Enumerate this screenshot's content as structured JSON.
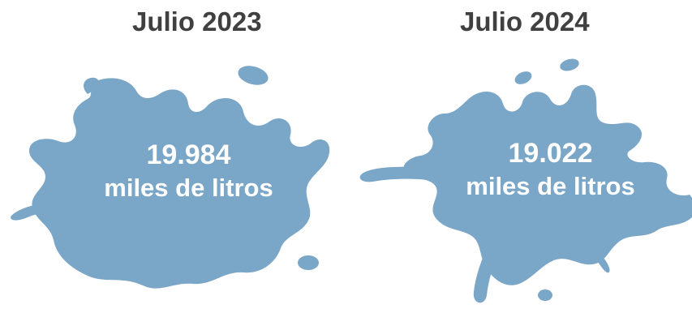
{
  "panels": [
    {
      "title": "Julio 2023",
      "value": "19.984",
      "unit": "miles de litros"
    },
    {
      "title": "Julio 2024",
      "value": "19.022",
      "unit": "miles de litros"
    }
  ],
  "colors": {
    "splash": "#7aa6c8",
    "text": "#ffffff",
    "title": "#404040"
  },
  "icons": [
    "water-splash-icon",
    "water-splash-icon"
  ]
}
